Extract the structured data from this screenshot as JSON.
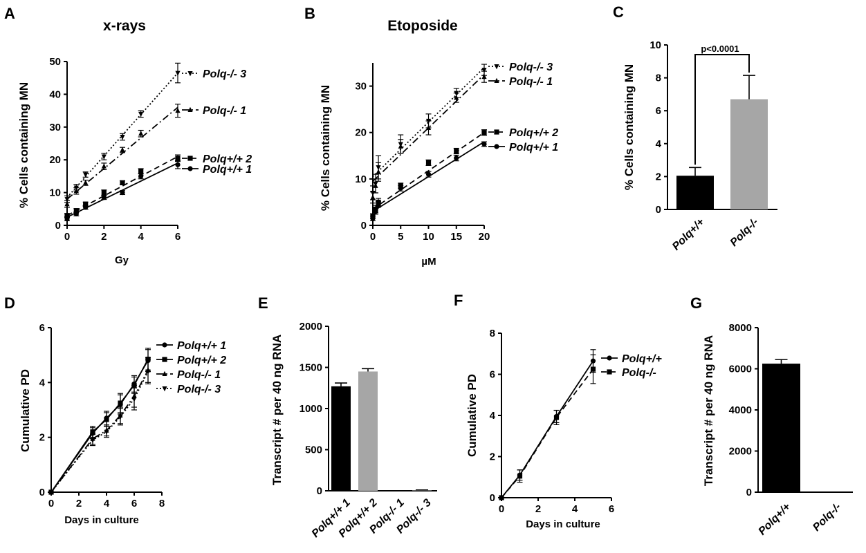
{
  "chart_data": [
    {
      "id": "A",
      "panel_label": "A",
      "type": "line",
      "title": "x-rays",
      "xlabel": "Gy",
      "ylabel": "% Cells containing MN",
      "xlim": [
        0,
        6
      ],
      "ylim": [
        0,
        50
      ],
      "xticks": [
        "0",
        "2",
        "4",
        "6"
      ],
      "yticks": [
        "0",
        "10",
        "20",
        "30",
        "40",
        "50"
      ],
      "series": [
        {
          "name": "Polq-/- 3",
          "x": [
            0,
            0.5,
            1,
            2,
            3,
            4,
            6
          ],
          "y": [
            8,
            11.5,
            15.5,
            21,
            27,
            34,
            46.5
          ],
          "err": [
            1,
            1,
            0.8,
            1,
            1,
            1,
            3
          ],
          "fit": [
            0,
            8.5,
            6,
            46.5
          ],
          "marker": "tri-down",
          "dash": "2,3"
        },
        {
          "name": "Polq-/- 1",
          "x": [
            0,
            0.5,
            1,
            2,
            3,
            4,
            6
          ],
          "y": [
            6.5,
            10.5,
            13,
            18,
            23,
            28,
            35
          ],
          "err": [
            1,
            1,
            0.8,
            1,
            0.8,
            1,
            2
          ],
          "fit": [
            0,
            8,
            6,
            36
          ],
          "marker": "tri-up",
          "dash": "10,4,2,4"
        },
        {
          "name": "Polq+/+ 2",
          "x": [
            0,
            0.5,
            1,
            2,
            3,
            4,
            6
          ],
          "y": [
            3,
            4.5,
            6.5,
            10,
            13,
            16.5,
            20.5
          ],
          "err": [
            0.6,
            0.6,
            0.6,
            0.8,
            0.6,
            0.8,
            1
          ],
          "fit": [
            0,
            3,
            6,
            21
          ],
          "marker": "square",
          "dash": "8,5"
        },
        {
          "name": "Polq+/+ 1",
          "x": [
            0,
            0.5,
            1,
            2,
            3,
            4,
            6
          ],
          "y": [
            2,
            3.5,
            5.5,
            8.5,
            10,
            15,
            18.5
          ],
          "err": [
            0.6,
            0.6,
            0.6,
            0.6,
            0.6,
            0.8,
            1.2
          ],
          "fit": [
            0,
            2.5,
            6,
            19
          ],
          "marker": "circle",
          "dash": ""
        }
      ]
    },
    {
      "id": "B",
      "panel_label": "B",
      "type": "line",
      "title": "Etoposide",
      "xlabel": "µM",
      "ylabel": "% Cells containing MN",
      "xlim": [
        0,
        20
      ],
      "ylim": [
        0,
        35
      ],
      "xticks": [
        "0",
        "5",
        "10",
        "15",
        "20"
      ],
      "yticks": [
        "0",
        "10",
        "20",
        "30"
      ],
      "series": [
        {
          "name": "Polq-/- 3",
          "x": [
            0,
            0.5,
            1,
            5,
            10,
            15,
            20
          ],
          "y": [
            7,
            9,
            12.5,
            17.5,
            22.5,
            28.5,
            33.5
          ],
          "err": [
            1.5,
            2,
            2.5,
            2,
            1.5,
            1,
            1.2
          ],
          "fit": [
            0,
            10.5,
            20,
            34
          ],
          "marker": "tri-down",
          "dash": "2,3"
        },
        {
          "name": "Polq-/- 1",
          "x": [
            0,
            0.5,
            1,
            5,
            10,
            15,
            20
          ],
          "y": [
            6,
            8.5,
            11.5,
            17,
            21,
            27.5,
            32
          ],
          "err": [
            1.2,
            1.5,
            2,
            1.5,
            1.5,
            1,
            1.2
          ],
          "fit": [
            0,
            9.5,
            20,
            32.5
          ],
          "marker": "tri-up",
          "dash": "10,4,2,4"
        },
        {
          "name": "Polq+/+ 2",
          "x": [
            0,
            0.5,
            1,
            5,
            10,
            15,
            20
          ],
          "y": [
            2,
            3.5,
            5,
            8.5,
            13.5,
            16,
            20
          ],
          "err": [
            0.5,
            0.8,
            0.8,
            0.6,
            0.6,
            0.6,
            0.6
          ],
          "fit": [
            0,
            3.5,
            20,
            20
          ],
          "marker": "square",
          "dash": "8,5"
        },
        {
          "name": "Polq+/+ 1",
          "x": [
            0,
            0.5,
            1,
            5,
            10,
            15,
            20
          ],
          "y": [
            1.5,
            3,
            4.5,
            8,
            11,
            14.5,
            17.5
          ],
          "err": [
            0.5,
            0.6,
            0.6,
            0.6,
            0.6,
            0.6,
            0.5
          ],
          "fit": [
            0,
            3,
            20,
            18
          ],
          "marker": "circle",
          "dash": ""
        }
      ]
    },
    {
      "id": "C",
      "panel_label": "C",
      "type": "bar",
      "title": "",
      "xlabel": "",
      "ylabel": "% Cells containing MN",
      "ylim": [
        0,
        10
      ],
      "yticks": [
        "0",
        "2",
        "4",
        "6",
        "8",
        "10"
      ],
      "categories": [
        "Polq+/+",
        "Polq-/-"
      ],
      "values": [
        2.05,
        6.7
      ],
      "err": [
        0.5,
        1.45
      ],
      "colors": [
        "#000000",
        "#a6a6a6"
      ],
      "annotation": "p<0.0001"
    },
    {
      "id": "D",
      "panel_label": "D",
      "type": "line",
      "title": "",
      "xlabel": "Days in culture",
      "ylabel": "Cumulative PD",
      "xlim": [
        0,
        8
      ],
      "ylim": [
        0,
        6
      ],
      "xticks": [
        "0",
        "2",
        "4",
        "6",
        "8"
      ],
      "yticks": [
        "0",
        "2",
        "4",
        "6"
      ],
      "legend": "top-right",
      "series": [
        {
          "name": "Polq+/+ 1",
          "x": [
            0,
            3,
            4,
            5,
            6,
            7
          ],
          "y": [
            0,
            2.15,
            2.7,
            3.2,
            3.95,
            4.8
          ],
          "err": [
            0,
            0.2,
            0.25,
            0.35,
            0.3,
            0.4
          ],
          "marker": "circle",
          "dash": ""
        },
        {
          "name": "Polq+/+ 2",
          "x": [
            0,
            3,
            4,
            5,
            6,
            7
          ],
          "y": [
            0,
            2.2,
            2.65,
            3.25,
            3.9,
            4.85
          ],
          "err": [
            0,
            0.2,
            0.25,
            0.35,
            0.3,
            0.4
          ],
          "marker": "square",
          "dash": ""
        },
        {
          "name": "Polq-/- 1",
          "x": [
            0,
            3,
            4,
            5,
            6,
            7
          ],
          "y": [
            0,
            1.95,
            2.25,
            2.8,
            3.5,
            4.45
          ],
          "err": [
            0,
            0.2,
            0.2,
            0.3,
            0.4,
            0.45
          ],
          "marker": "tri-up",
          "dash": "10,4,2,4"
        },
        {
          "name": "Polq-/- 3",
          "x": [
            0,
            3,
            4,
            5,
            6,
            7
          ],
          "y": [
            0,
            1.9,
            2.2,
            2.75,
            3.4,
            4.4
          ],
          "err": [
            0,
            0.2,
            0.2,
            0.3,
            0.4,
            0.45
          ],
          "marker": "tri-down",
          "dash": "2,3"
        }
      ]
    },
    {
      "id": "E",
      "panel_label": "E",
      "type": "bar",
      "title": "",
      "xlabel": "",
      "ylabel": "Transcript # per 40 ng RNA",
      "ylim": [
        0,
        2000
      ],
      "yticks": [
        "0",
        "500",
        "1000",
        "1500",
        "2000"
      ],
      "categories": [
        "Polq+/+ 1",
        "Polq+/+ 2",
        "Polq-/- 1",
        "Polq-/- 3"
      ],
      "values": [
        1270,
        1450,
        0,
        5
      ],
      "err": [
        40,
        35,
        0,
        5
      ],
      "colors": [
        "#000000",
        "#a6a6a6",
        "#000000",
        "#a6a6a6"
      ]
    },
    {
      "id": "F",
      "panel_label": "F",
      "type": "line",
      "title": "",
      "xlabel": "Days in culture",
      "ylabel": "Cumulative PD",
      "xlim": [
        0,
        6
      ],
      "ylim": [
        0,
        8
      ],
      "xticks": [
        "0",
        "2",
        "4",
        "6"
      ],
      "yticks": [
        "0",
        "2",
        "4",
        "6",
        "8"
      ],
      "legend": "top-right",
      "series": [
        {
          "name": "Polq+/+",
          "x": [
            0,
            1,
            3,
            5
          ],
          "y": [
            0,
            1.1,
            3.95,
            6.65
          ],
          "err": [
            0,
            0.25,
            0.3,
            0.55
          ],
          "marker": "circle",
          "dash": ""
        },
        {
          "name": "Polq-/-",
          "x": [
            0,
            1,
            3,
            5
          ],
          "y": [
            0,
            1.05,
            3.9,
            6.25
          ],
          "err": [
            0,
            0.3,
            0.35,
            0.7
          ],
          "marker": "square",
          "dash": "8,5"
        }
      ]
    },
    {
      "id": "G",
      "panel_label": "G",
      "type": "bar",
      "title": "",
      "xlabel": "",
      "ylabel": "Transcript # per 40 ng RNA",
      "ylim": [
        0,
        8000
      ],
      "yticks": [
        "0",
        "2000",
        "4000",
        "6000",
        "8000"
      ],
      "categories": [
        "Polq+/+",
        "Polq-/-"
      ],
      "values": [
        6250,
        0
      ],
      "err": [
        200,
        0
      ],
      "colors": [
        "#000000",
        "#a6a6a6"
      ]
    }
  ]
}
